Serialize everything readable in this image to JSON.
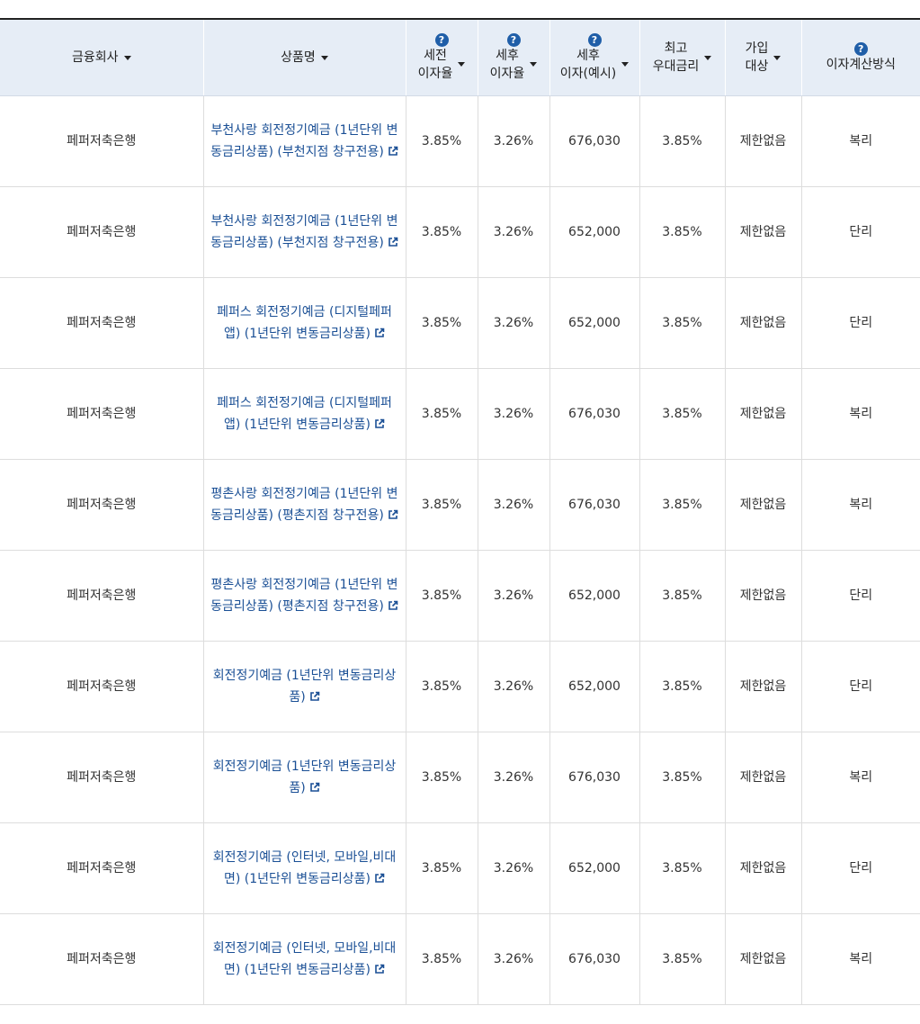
{
  "headers": {
    "company": "금융회사",
    "product": "상품명",
    "pretax_line1": "세전",
    "pretax_line2": "이자율",
    "posttax_line1": "세후",
    "posttax_line2": "이자율",
    "interest_line1": "세후",
    "interest_line2": "이자(예시)",
    "maxrate_line1": "최고",
    "maxrate_line2": "우대금리",
    "join_line1": "가입",
    "join_line2": "대상",
    "calc": "이자계산방식",
    "help_symbol": "?"
  },
  "rows": [
    {
      "company": "페퍼저축은행",
      "product": "부천사랑 회전정기예금 (1년단위 변동금리상품) (부천지점 창구전용)",
      "pretax": "3.85%",
      "posttax": "3.26%",
      "interest": "676,030",
      "maxrate": "3.85%",
      "join": "제한없음",
      "calc": "복리"
    },
    {
      "company": "페퍼저축은행",
      "product": "부천사랑 회전정기예금 (1년단위 변동금리상품) (부천지점 창구전용)",
      "pretax": "3.85%",
      "posttax": "3.26%",
      "interest": "652,000",
      "maxrate": "3.85%",
      "join": "제한없음",
      "calc": "단리"
    },
    {
      "company": "페퍼저축은행",
      "product": "페퍼스 회전정기예금 (디지털페퍼앱) (1년단위 변동금리상품)",
      "pretax": "3.85%",
      "posttax": "3.26%",
      "interest": "652,000",
      "maxrate": "3.85%",
      "join": "제한없음",
      "calc": "단리"
    },
    {
      "company": "페퍼저축은행",
      "product": "페퍼스 회전정기예금 (디지털페퍼앱) (1년단위 변동금리상품)",
      "pretax": "3.85%",
      "posttax": "3.26%",
      "interest": "676,030",
      "maxrate": "3.85%",
      "join": "제한없음",
      "calc": "복리"
    },
    {
      "company": "페퍼저축은행",
      "product": "평촌사랑 회전정기예금 (1년단위 변동금리상품) (평촌지점 창구전용)",
      "pretax": "3.85%",
      "posttax": "3.26%",
      "interest": "676,030",
      "maxrate": "3.85%",
      "join": "제한없음",
      "calc": "복리"
    },
    {
      "company": "페퍼저축은행",
      "product": "평촌사랑 회전정기예금 (1년단위 변동금리상품) (평촌지점 창구전용)",
      "pretax": "3.85%",
      "posttax": "3.26%",
      "interest": "652,000",
      "maxrate": "3.85%",
      "join": "제한없음",
      "calc": "단리"
    },
    {
      "company": "페퍼저축은행",
      "product": "회전정기예금 (1년단위 변동금리상품)",
      "pretax": "3.85%",
      "posttax": "3.26%",
      "interest": "652,000",
      "maxrate": "3.85%",
      "join": "제한없음",
      "calc": "단리"
    },
    {
      "company": "페퍼저축은행",
      "product": "회전정기예금 (1년단위 변동금리상품)",
      "pretax": "3.85%",
      "posttax": "3.26%",
      "interest": "676,030",
      "maxrate": "3.85%",
      "join": "제한없음",
      "calc": "복리"
    },
    {
      "company": "페퍼저축은행",
      "product": "회전정기예금 (인터넷, 모바일,비대면) (1년단위 변동금리상품)",
      "pretax": "3.85%",
      "posttax": "3.26%",
      "interest": "652,000",
      "maxrate": "3.85%",
      "join": "제한없음",
      "calc": "단리"
    },
    {
      "company": "페퍼저축은행",
      "product": "회전정기예금 (인터넷, 모바일,비대면) (1년단위 변동금리상품)",
      "pretax": "3.85%",
      "posttax": "3.26%",
      "interest": "676,030",
      "maxrate": "3.85%",
      "join": "제한없음",
      "calc": "복리"
    }
  ],
  "icons": {
    "sort": "caret-down-icon",
    "help": "question-circle-icon",
    "external": "external-link-icon"
  },
  "colors": {
    "header_bg": "#e6edf6",
    "link": "#1a4f95",
    "help_icon": "#1f5ea8"
  }
}
